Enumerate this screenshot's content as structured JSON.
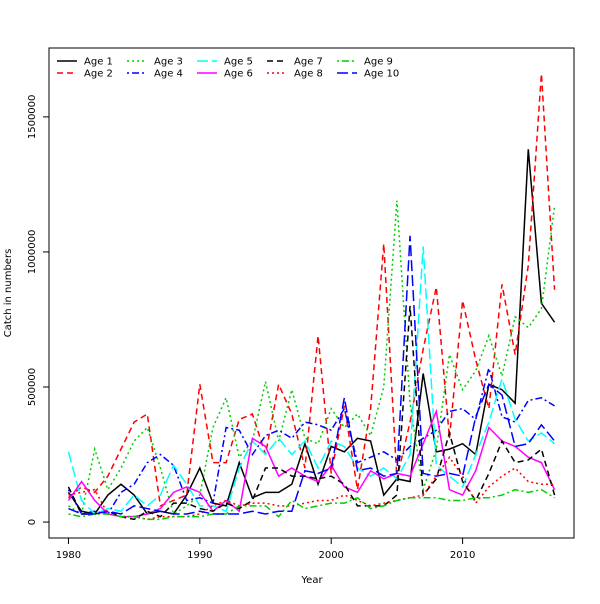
{
  "chart_data": {
    "type": "line",
    "x_label": "Year",
    "y_label": "Catch in numbers",
    "x": [
      1980,
      1981,
      1982,
      1983,
      1984,
      1985,
      1986,
      1987,
      1988,
      1989,
      1990,
      1991,
      1992,
      1993,
      1994,
      1995,
      1996,
      1997,
      1998,
      1999,
      2000,
      2001,
      2002,
      2003,
      2004,
      2005,
      2006,
      2007,
      2008,
      2009,
      2010,
      2011,
      2012,
      2013,
      2014,
      2015,
      2016,
      2017
    ],
    "xlim": [
      1978.52,
      2018.48
    ],
    "xticks": [
      1980,
      1990,
      2000,
      2010
    ],
    "ylim": [
      -59000,
      1755000
    ],
    "yticks": [
      0,
      500000,
      1000000,
      1500000
    ],
    "legend": "top-left",
    "series": [
      {
        "name": "Age 1",
        "color": "#000000",
        "linestyle": "solid",
        "values": [
          110000,
          40000,
          30000,
          100000,
          140000,
          100000,
          30000,
          40000,
          30000,
          100000,
          200000,
          70000,
          60000,
          220000,
          90000,
          110000,
          110000,
          140000,
          290000,
          140000,
          280000,
          260000,
          310000,
          300000,
          100000,
          160000,
          150000,
          550000,
          260000,
          270000,
          290000,
          250000,
          510000,
          490000,
          440000,
          1380000,
          810000,
          740000
        ]
      },
      {
        "name": "Age 2",
        "color": "#ff0000",
        "linestyle": "dashed",
        "values": [
          90000,
          130000,
          110000,
          170000,
          270000,
          370000,
          400000,
          60000,
          80000,
          100000,
          510000,
          220000,
          220000,
          380000,
          400000,
          250000,
          510000,
          400000,
          200000,
          690000,
          180000,
          430000,
          120000,
          420000,
          1030000,
          160000,
          370000,
          640000,
          870000,
          310000,
          820000,
          600000,
          420000,
          880000,
          620000,
          950000,
          1660000,
          860000
        ]
      },
      {
        "name": "Age 3",
        "color": "#00cd00",
        "linestyle": "dotted",
        "values": [
          60000,
          30000,
          270000,
          120000,
          200000,
          300000,
          350000,
          200000,
          30000,
          60000,
          100000,
          350000,
          460000,
          240000,
          300000,
          520000,
          300000,
          490000,
          310000,
          290000,
          420000,
          350000,
          400000,
          320000,
          500000,
          1190000,
          440000,
          120000,
          270000,
          620000,
          490000,
          560000,
          690000,
          540000,
          760000,
          720000,
          790000,
          1170000
        ]
      },
      {
        "name": "Age 4",
        "color": "#0000ff",
        "linestyle": "dotdash",
        "values": [
          120000,
          30000,
          40000,
          30000,
          110000,
          140000,
          220000,
          250000,
          210000,
          80000,
          90000,
          70000,
          350000,
          340000,
          250000,
          320000,
          340000,
          310000,
          370000,
          360000,
          340000,
          420000,
          220000,
          240000,
          260000,
          230000,
          280000,
          310000,
          340000,
          410000,
          420000,
          380000,
          570000,
          390000,
          370000,
          450000,
          460000,
          430000
        ]
      },
      {
        "name": "Age 5",
        "color": "#00ffff",
        "linestyle": "longdash",
        "values": [
          260000,
          80000,
          30000,
          50000,
          40000,
          100000,
          60000,
          100000,
          210000,
          140000,
          60000,
          60000,
          40000,
          200000,
          300000,
          250000,
          310000,
          250000,
          300000,
          200000,
          300000,
          280000,
          200000,
          170000,
          200000,
          160000,
          250000,
          1020000,
          210000,
          170000,
          130000,
          250000,
          370000,
          530000,
          380000,
          300000,
          330000,
          290000
        ]
      },
      {
        "name": "Age 6",
        "color": "#ff00ff",
        "linestyle": "solid",
        "values": [
          80000,
          150000,
          80000,
          30000,
          20000,
          20000,
          30000,
          50000,
          110000,
          130000,
          110000,
          40000,
          80000,
          40000,
          310000,
          280000,
          170000,
          200000,
          170000,
          150000,
          210000,
          130000,
          110000,
          190000,
          160000,
          180000,
          170000,
          290000,
          410000,
          120000,
          100000,
          190000,
          350000,
          300000,
          280000,
          240000,
          220000,
          120000
        ]
      },
      {
        "name": "Age 7",
        "color": "#000000",
        "linestyle": "dashed",
        "values": [
          130000,
          30000,
          30000,
          40000,
          20000,
          10000,
          40000,
          20000,
          70000,
          70000,
          50000,
          40000,
          70000,
          50000,
          80000,
          200000,
          200000,
          170000,
          170000,
          160000,
          170000,
          140000,
          60000,
          60000,
          60000,
          100000,
          800000,
          100000,
          160000,
          330000,
          150000,
          80000,
          180000,
          300000,
          220000,
          230000,
          270000,
          100000
        ]
      },
      {
        "name": "Age 8",
        "color": "#ff0000",
        "linestyle": "dotted",
        "values": [
          100000,
          110000,
          120000,
          30000,
          20000,
          20000,
          10000,
          20000,
          20000,
          20000,
          30000,
          60000,
          80000,
          60000,
          70000,
          70000,
          60000,
          60000,
          70000,
          80000,
          80000,
          100000,
          80000,
          60000,
          70000,
          80000,
          90000,
          100000,
          170000,
          240000,
          170000,
          70000,
          130000,
          170000,
          200000,
          150000,
          140000,
          140000
        ]
      },
      {
        "name": "Age 9",
        "color": "#00cd00",
        "linestyle": "dotdash",
        "values": [
          30000,
          20000,
          30000,
          30000,
          20000,
          20000,
          10000,
          10000,
          20000,
          20000,
          20000,
          30000,
          30000,
          60000,
          60000,
          60000,
          20000,
          80000,
          50000,
          60000,
          70000,
          70000,
          90000,
          50000,
          60000,
          80000,
          90000,
          90000,
          90000,
          80000,
          80000,
          90000,
          90000,
          100000,
          120000,
          110000,
          120000,
          90000
        ]
      },
      {
        "name": "Age 10",
        "color": "#0000ff",
        "linestyle": "longdash",
        "values": [
          50000,
          30000,
          30000,
          40000,
          30000,
          60000,
          50000,
          40000,
          30000,
          30000,
          40000,
          30000,
          30000,
          30000,
          40000,
          30000,
          40000,
          40000,
          190000,
          180000,
          200000,
          460000,
          190000,
          200000,
          170000,
          180000,
          1060000,
          180000,
          170000,
          180000,
          170000,
          390000,
          510000,
          470000,
          280000,
          290000,
          360000,
          300000
        ]
      }
    ]
  }
}
